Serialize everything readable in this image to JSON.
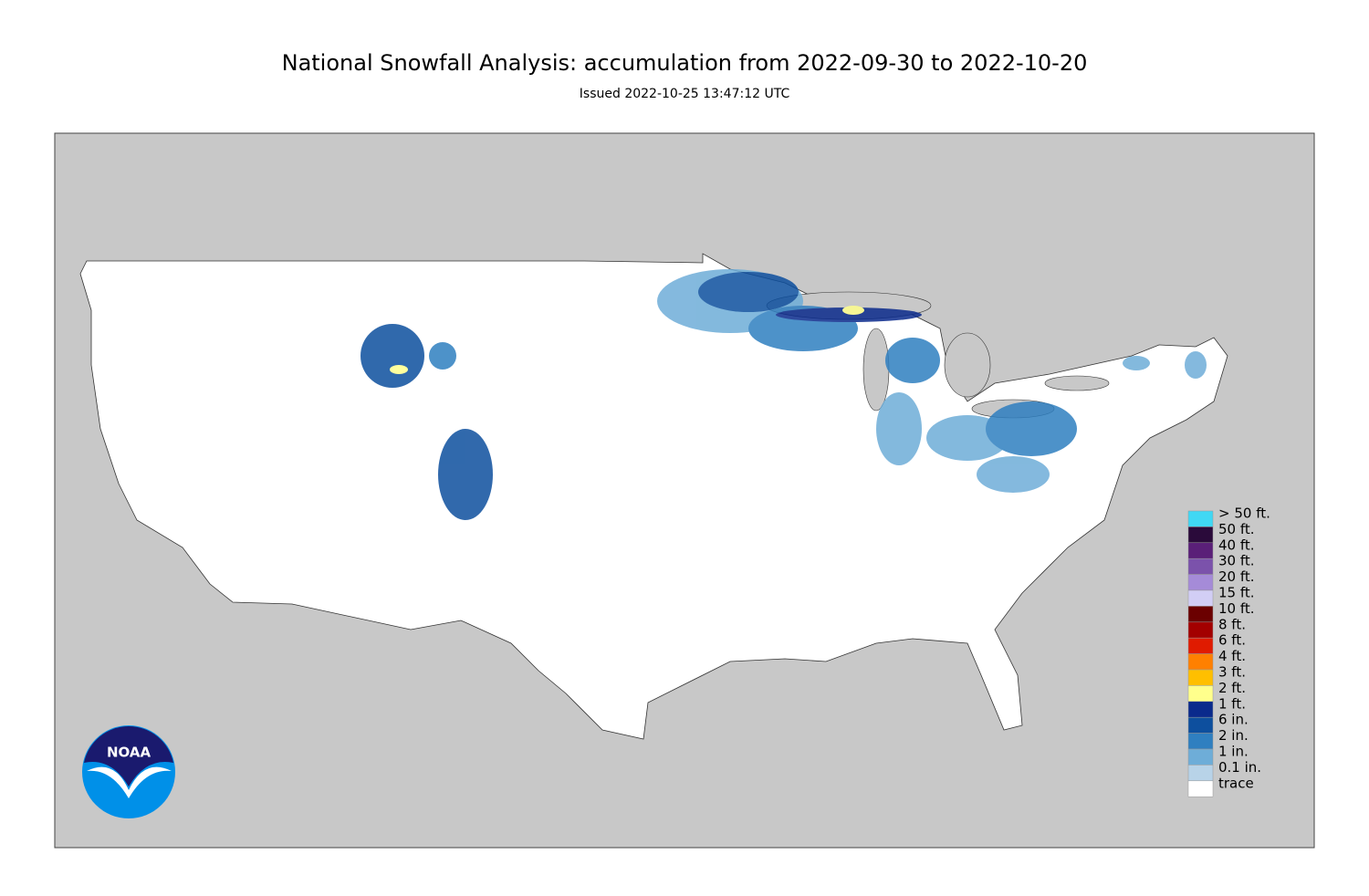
{
  "header": {
    "title": "National Snowfall Analysis: accumulation from 2022-09-30 to 2022-10-20",
    "subtitle": "Issued 2022-10-25 13:47:12 UTC"
  },
  "legend": {
    "entries": [
      {
        "label": "> 50 ft.",
        "color": "#40d8f4"
      },
      {
        "label": "50 ft.",
        "color": "#2a0a3a"
      },
      {
        "label": "40 ft.",
        "color": "#5a1f78"
      },
      {
        "label": "30 ft.",
        "color": "#7b52ab"
      },
      {
        "label": "20 ft.",
        "color": "#a58bd8"
      },
      {
        "label": "15 ft.",
        "color": "#d2cef5"
      },
      {
        "label": "10 ft.",
        "color": "#6b0000"
      },
      {
        "label": "8 ft.",
        "color": "#a30000"
      },
      {
        "label": "6 ft.",
        "color": "#e01b00"
      },
      {
        "label": "4 ft.",
        "color": "#ff8000"
      },
      {
        "label": "3 ft.",
        "color": "#ffbf00"
      },
      {
        "label": "2 ft.",
        "color": "#ffff8c"
      },
      {
        "label": "1 ft.",
        "color": "#0a2a8c"
      },
      {
        "label": "6 in.",
        "color": "#0d4f9e"
      },
      {
        "label": "2 in.",
        "color": "#2f7fc0"
      },
      {
        "label": "1 in.",
        "color": "#6eadd8"
      },
      {
        "label": "0.1 in.",
        "color": "#b8d3e8"
      },
      {
        "label": "trace",
        "color": "#ffffff"
      }
    ]
  },
  "logo": {
    "text": "NOAA"
  }
}
